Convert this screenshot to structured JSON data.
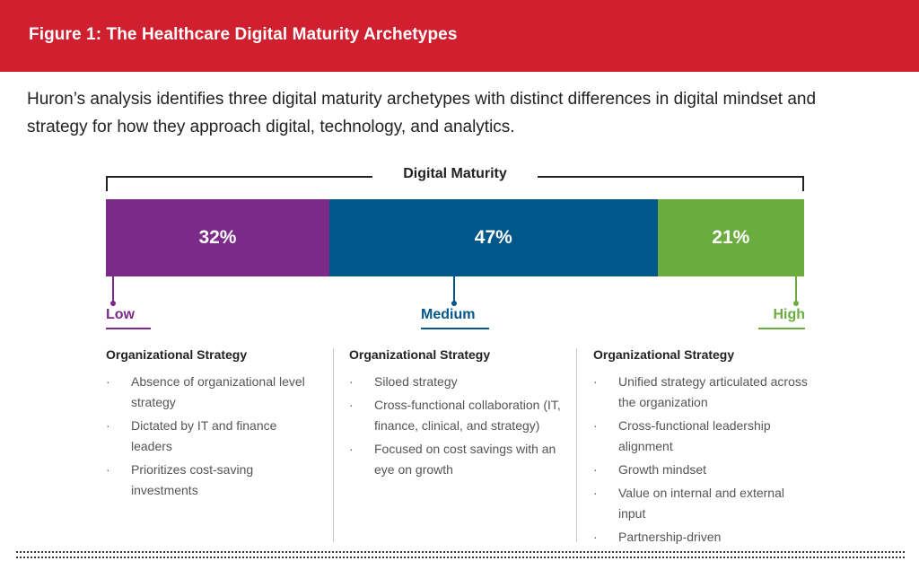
{
  "header": {
    "title": "Figure 1: The Healthcare Digital Maturity Archetypes"
  },
  "intro": {
    "text": "Huron’s analysis identifies three digital maturity archetypes with distinct differences in digital mindset and strategy for how they approach digital, technology, and analytics."
  },
  "chart_data": {
    "type": "bar",
    "title": "Digital Maturity",
    "orientation": "horizontal-stacked",
    "categories": [
      "Low",
      "Medium",
      "High"
    ],
    "values": [
      32,
      47,
      21
    ],
    "labels": [
      "32%",
      "47%",
      "21%"
    ],
    "colors": [
      "#7b2a8a",
      "#00578a",
      "#6aac3e"
    ]
  },
  "columns": [
    {
      "heading": "Organizational Strategy",
      "items": [
        "Absence of organizational level strategy",
        "Dictated by IT and finance leaders",
        "Prioritizes cost-saving investments"
      ]
    },
    {
      "heading": "Organizational Strategy",
      "items": [
        "Siloed strategy",
        "Cross-functional collaboration (IT, finance, clinical, and strategy)",
        "Focused on cost savings with an eye on growth"
      ]
    },
    {
      "heading": "Organizational Strategy",
      "items": [
        "Unified strategy articulated across the organization",
        "Cross-functional leadership alignment",
        "Growth mindset",
        "Value on internal and external input",
        "Partnership-driven"
      ]
    }
  ],
  "bullet": "·"
}
